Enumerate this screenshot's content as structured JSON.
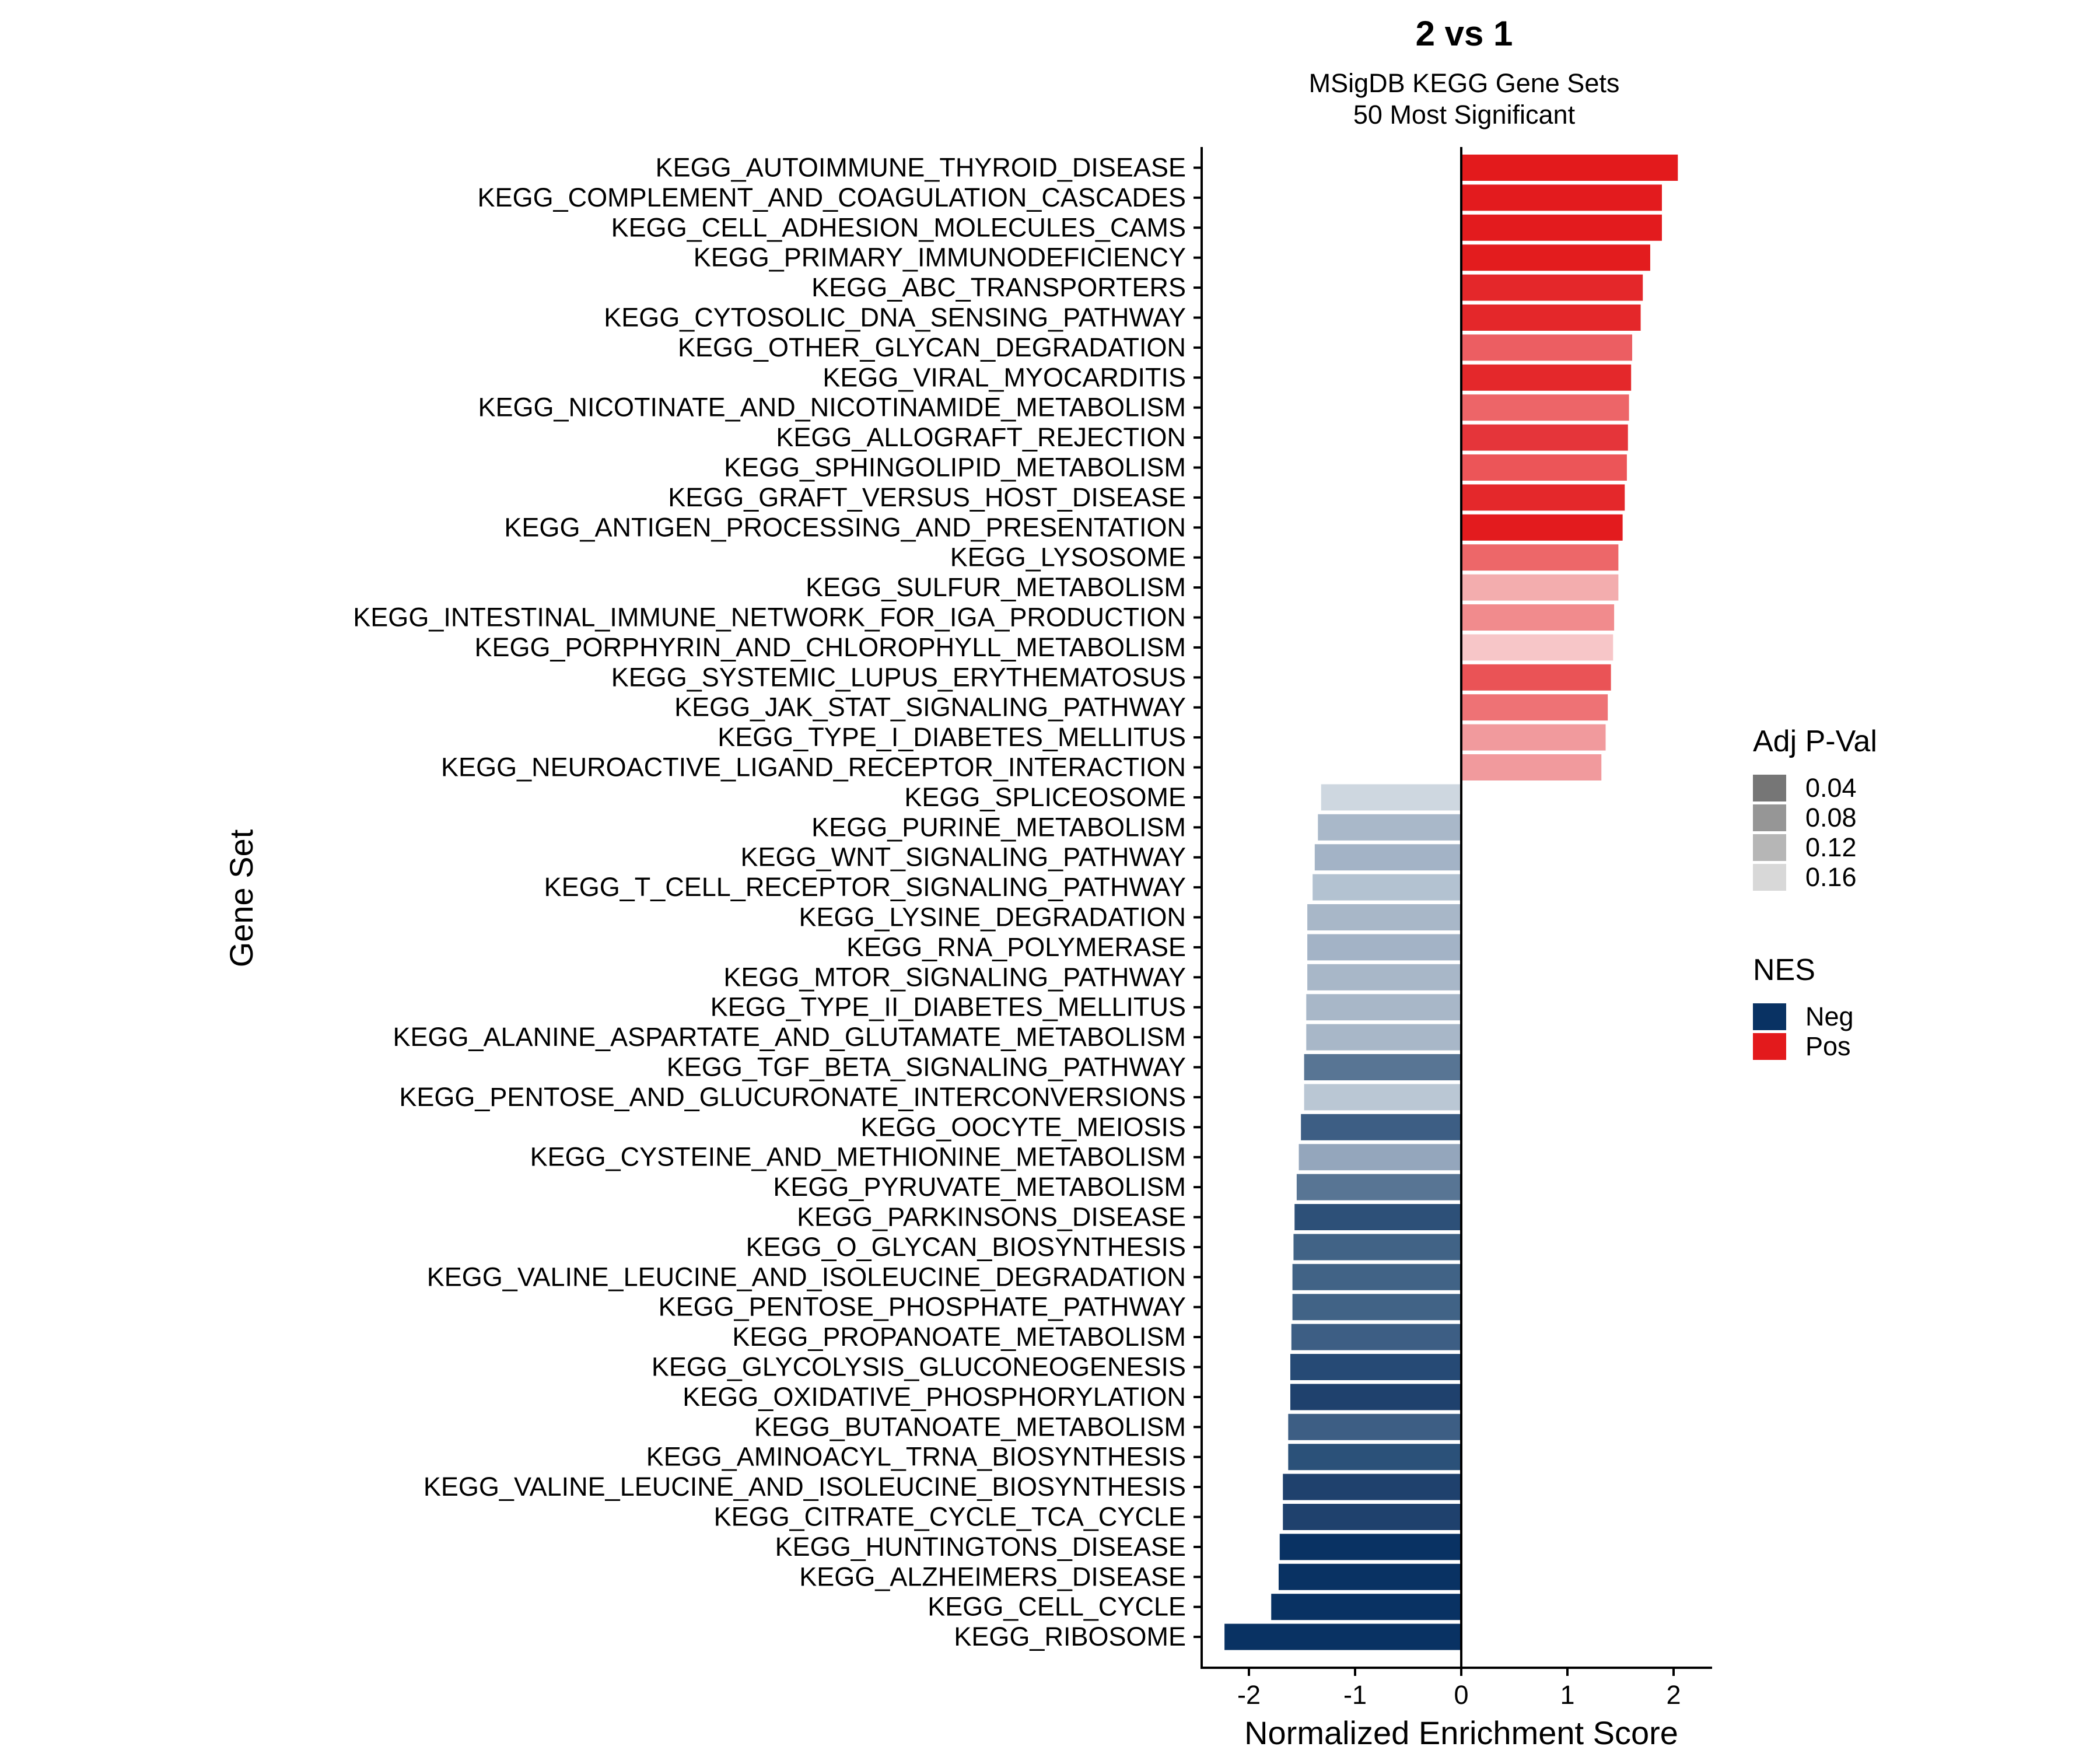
{
  "chart_data": {
    "type": "bar",
    "orientation": "horizontal",
    "title": "2 vs 1",
    "subtitle_lines": [
      "MSigDB KEGG Gene Sets",
      "50 Most Significant"
    ],
    "xlabel": "Normalized Enrichment Score",
    "ylabel": "Gene Set",
    "xlim": [
      -2.3,
      2.3
    ],
    "x_ticks": [
      -2,
      -1,
      0,
      1,
      2
    ],
    "x_tick_labels": [
      "-2",
      "-1",
      "0",
      "1",
      "2"
    ],
    "grid": false,
    "legend_placement": "right",
    "legends": [
      {
        "title": "Adj P-Val",
        "entries": [
          {
            "label": "0.04",
            "color": "#767676"
          },
          {
            "label": "0.08",
            "color": "#969696"
          },
          {
            "label": "0.12",
            "color": "#b6b6b6"
          },
          {
            "label": "0.16",
            "color": "#d8d8d8"
          }
        ]
      },
      {
        "title": "NES",
        "entries": [
          {
            "label": "Neg",
            "color": "#093263"
          },
          {
            "label": "Pos",
            "color": "#e31a1c"
          }
        ]
      }
    ],
    "categories": [
      "KEGG_AUTOIMMUNE_THYROID_DISEASE",
      "KEGG_COMPLEMENT_AND_COAGULATION_CASCADES",
      "KEGG_CELL_ADHESION_MOLECULES_CAMS",
      "KEGG_PRIMARY_IMMUNODEFICIENCY",
      "KEGG_ABC_TRANSPORTERS",
      "KEGG_CYTOSOLIC_DNA_SENSING_PATHWAY",
      "KEGG_OTHER_GLYCAN_DEGRADATION",
      "KEGG_VIRAL_MYOCARDITIS",
      "KEGG_NICOTINATE_AND_NICOTINAMIDE_METABOLISM",
      "KEGG_ALLOGRAFT_REJECTION",
      "KEGG_SPHINGOLIPID_METABOLISM",
      "KEGG_GRAFT_VERSUS_HOST_DISEASE",
      "KEGG_ANTIGEN_PROCESSING_AND_PRESENTATION",
      "KEGG_LYSOSOME",
      "KEGG_SULFUR_METABOLISM",
      "KEGG_INTESTINAL_IMMUNE_NETWORK_FOR_IGA_PRODUCTION",
      "KEGG_PORPHYRIN_AND_CHLOROPHYLL_METABOLISM",
      "KEGG_SYSTEMIC_LUPUS_ERYTHEMATOSUS",
      "KEGG_JAK_STAT_SIGNALING_PATHWAY",
      "KEGG_TYPE_I_DIABETES_MELLITUS",
      "KEGG_NEUROACTIVE_LIGAND_RECEPTOR_INTERACTION",
      "KEGG_SPLICEOSOME",
      "KEGG_PURINE_METABOLISM",
      "KEGG_WNT_SIGNALING_PATHWAY",
      "KEGG_T_CELL_RECEPTOR_SIGNALING_PATHWAY",
      "KEGG_LYSINE_DEGRADATION",
      "KEGG_RNA_POLYMERASE",
      "KEGG_MTOR_SIGNALING_PATHWAY",
      "KEGG_TYPE_II_DIABETES_MELLITUS",
      "KEGG_ALANINE_ASPARTATE_AND_GLUTAMATE_METABOLISM",
      "KEGG_TGF_BETA_SIGNALING_PATHWAY",
      "KEGG_PENTOSE_AND_GLUCURONATE_INTERCONVERSIONS",
      "KEGG_OOCYTE_MEIOSIS",
      "KEGG_CYSTEINE_AND_METHIONINE_METABOLISM",
      "KEGG_PYRUVATE_METABOLISM",
      "KEGG_PARKINSONS_DISEASE",
      "KEGG_O_GLYCAN_BIOSYNTHESIS",
      "KEGG_VALINE_LEUCINE_AND_ISOLEUCINE_DEGRADATION",
      "KEGG_PENTOSE_PHOSPHATE_PATHWAY",
      "KEGG_PROPANOATE_METABOLISM",
      "KEGG_GLYCOLYSIS_GLUCONEOGENESIS",
      "KEGG_OXIDATIVE_PHOSPHORYLATION",
      "KEGG_BUTANOATE_METABOLISM",
      "KEGG_AMINOACYL_TRNA_BIOSYNTHESIS",
      "KEGG_VALINE_LEUCINE_AND_ISOLEUCINE_BIOSYNTHESIS",
      "KEGG_CITRATE_CYCLE_TCA_CYCLE",
      "KEGG_HUNTINGTONS_DISEASE",
      "KEGG_ALZHEIMERS_DISEASE",
      "KEGG_CELL_CYCLE",
      "KEGG_RIBOSOME"
    ],
    "values": [
      2.04,
      1.89,
      1.89,
      1.78,
      1.71,
      1.69,
      1.61,
      1.6,
      1.58,
      1.57,
      1.56,
      1.54,
      1.52,
      1.48,
      1.48,
      1.44,
      1.43,
      1.41,
      1.38,
      1.36,
      1.32,
      -1.32,
      -1.35,
      -1.38,
      -1.4,
      -1.45,
      -1.45,
      -1.45,
      -1.46,
      -1.46,
      -1.48,
      -1.48,
      -1.51,
      -1.53,
      -1.55,
      -1.57,
      -1.58,
      -1.59,
      -1.59,
      -1.6,
      -1.61,
      -1.61,
      -1.63,
      -1.63,
      -1.68,
      -1.68,
      -1.71,
      -1.72,
      -1.79,
      -2.23
    ],
    "bar_colors": [
      "#e31a1c",
      "#e31b1e",
      "#e31b1e",
      "#e31c1e",
      "#e4272a",
      "#e4272a",
      "#ec5e62",
      "#e4282b",
      "#ed6568",
      "#e5353a",
      "#ec5558",
      "#e4282b",
      "#e31b1e",
      "#ed6769",
      "#f3adae",
      "#f18b8d",
      "#f7c6c8",
      "#ea5356",
      "#ee7275",
      "#f19a9d",
      "#f19a9d",
      "#ced7e0",
      "#a9b8c9",
      "#a3b3c6",
      "#b3c2d1",
      "#a8b7c8",
      "#a3b3c6",
      "#a8b7c8",
      "#a8b7c8",
      "#a8b7c8",
      "#587594",
      "#bac7d4",
      "#3d5e84",
      "#94a6bc",
      "#587594",
      "#2d5078",
      "#416386",
      "#416386",
      "#416386",
      "#3d5e84",
      "#264a75",
      "#1f416d",
      "#3d5e84",
      "#2b5179",
      "#1f416d",
      "#1f416d",
      "#093263",
      "#093263",
      "#093263",
      "#093263"
    ]
  }
}
